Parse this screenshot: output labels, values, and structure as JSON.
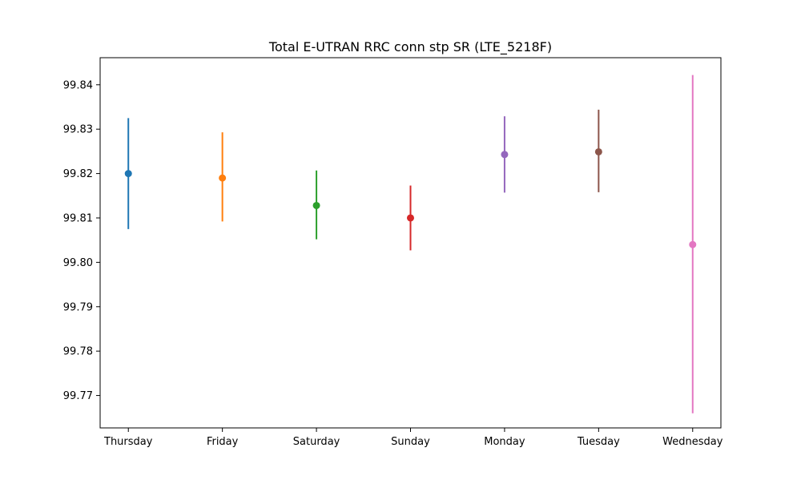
{
  "chart_data": {
    "type": "scatter",
    "title": "Total E-UTRAN RRC conn stp SR (LTE_5218F)",
    "xlabel": "",
    "ylabel": "",
    "ylim": [
      99.7627,
      99.8461
    ],
    "yticks": [
      "99.77",
      "99.78",
      "99.79",
      "99.80",
      "99.81",
      "99.82",
      "99.83",
      "99.84"
    ],
    "grid": false,
    "categories": [
      "Thursday",
      "Friday",
      "Saturday",
      "Sunday",
      "Monday",
      "Tuesday",
      "Wednesday"
    ],
    "points": [
      {
        "label": "Thursday",
        "value": 99.82,
        "low": 99.8075,
        "high": 99.8325,
        "color": "#1f77b4"
      },
      {
        "label": "Friday",
        "value": 99.819,
        "low": 99.8092,
        "high": 99.8293,
        "color": "#ff7f0e"
      },
      {
        "label": "Saturday",
        "value": 99.8128,
        "low": 99.8052,
        "high": 99.8207,
        "color": "#2ca02c"
      },
      {
        "label": "Sunday",
        "value": 99.81,
        "low": 99.8027,
        "high": 99.8173,
        "color": "#d62728"
      },
      {
        "label": "Monday",
        "value": 99.8243,
        "low": 99.8157,
        "high": 99.8329,
        "color": "#9467bd"
      },
      {
        "label": "Tuesday",
        "value": 99.8249,
        "low": 99.8158,
        "high": 99.8344,
        "color": "#8c564b"
      },
      {
        "label": "Wednesday",
        "value": 99.804,
        "low": 99.766,
        "high": 99.8422,
        "color": "#e377c2"
      }
    ]
  }
}
